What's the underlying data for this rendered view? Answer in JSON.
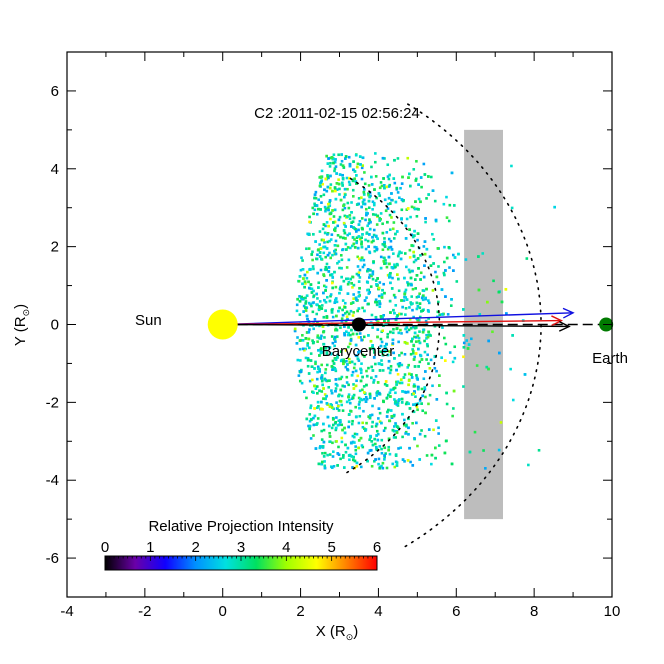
{
  "chart_data": {
    "type": "scatter",
    "title": "C2 :2011-02-15 02:56:24",
    "xlabel": "X (R",
    "xlabel_sub": "⊙",
    "xlabel_close": ")",
    "ylabel": "Y (R",
    "ylabel_sub": "⊙",
    "ylabel_close": ")",
    "xlim": [
      -4,
      10
    ],
    "ylim": [
      -7,
      7
    ],
    "x_ticks": [
      -4,
      -2,
      0,
      2,
      4,
      6,
      8,
      10
    ],
    "y_ticks": [
      -6,
      -4,
      -2,
      0,
      2,
      4,
      6
    ],
    "point_cloud": {
      "description_series": "CME projected density points",
      "x_range": [
        1.7,
        8.6
      ],
      "y_range": [
        -3.7,
        4.4
      ]
    },
    "bodies": [
      {
        "name": "Sun",
        "x": 0,
        "y": 0,
        "color": "#ffff00"
      },
      {
        "name": "Barycenter",
        "x": 3.5,
        "y": 0,
        "color": "#000000"
      },
      {
        "name": "Earth",
        "x": 9.85,
        "y": 0,
        "color": "#007a00"
      }
    ],
    "labels": {
      "sun": "Sun",
      "barycenter": "Barycenter",
      "earth": "Earth"
    },
    "shaded_band": {
      "x": [
        6.2,
        7.2
      ],
      "y": [
        -5,
        5
      ],
      "color": "#bdbdbd"
    },
    "arcs": [
      {
        "name": "inner front",
        "radius": 5.8
      },
      {
        "name": "outer front",
        "radius": 8.7
      }
    ],
    "vectors": [
      {
        "name": "blue",
        "to": [
          9.0,
          0.3
        ],
        "color": "#1010e0"
      },
      {
        "name": "red",
        "to": [
          8.7,
          0.1
        ],
        "color": "#e01010"
      },
      {
        "name": "black",
        "to": [
          8.9,
          -0.05
        ],
        "color": "#000000"
      }
    ],
    "sun_earth_line": {
      "from": [
        0,
        0
      ],
      "to": [
        9.85,
        0
      ],
      "style": "dashed"
    },
    "colorbar": {
      "title": "Relative Projection Intensity",
      "ticks": [
        0,
        1,
        2,
        3,
        4,
        5,
        6
      ],
      "range": [
        0,
        6
      ],
      "colors": [
        "#000000",
        "#6a00a8",
        "#1000ff",
        "#0090ff",
        "#00e0e0",
        "#00e060",
        "#a0ff00",
        "#ffff00",
        "#ff8000",
        "#ff0000"
      ]
    }
  }
}
